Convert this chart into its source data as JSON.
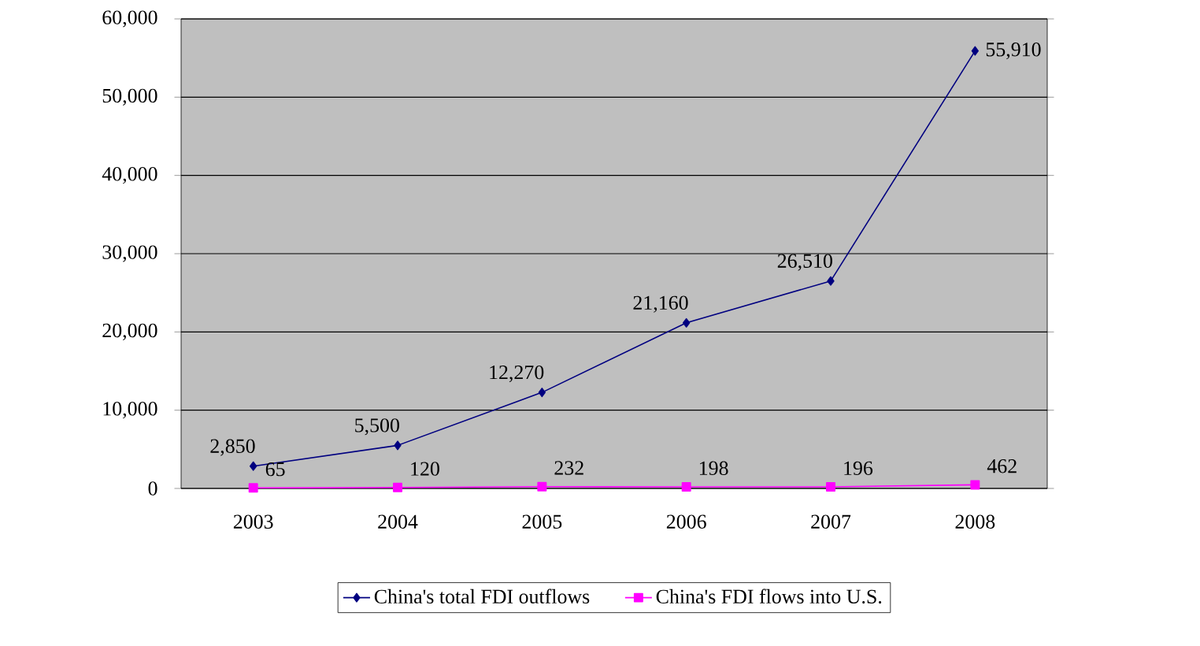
{
  "chart_data": {
    "type": "line",
    "categories": [
      "2003",
      "2004",
      "2005",
      "2006",
      "2007",
      "2008"
    ],
    "series": [
      {
        "name": "China's total FDI outflows",
        "color": "#000080",
        "marker": "diamond",
        "values": [
          2850,
          5500,
          12270,
          21160,
          26510,
          55910
        ],
        "value_labels": [
          "2,850",
          "5,500",
          "12,270",
          "21,160",
          "26,510",
          "55,910"
        ]
      },
      {
        "name": "China's FDI flows into U.S.",
        "color": "#ff00ff",
        "marker": "square",
        "values": [
          65,
          120,
          232,
          198,
          196,
          462
        ],
        "value_labels": [
          "65",
          "120",
          "232",
          "198",
          "196",
          "462"
        ]
      }
    ],
    "ylim": [
      0,
      60000
    ],
    "yticks": [
      {
        "value": 0,
        "label": "0"
      },
      {
        "value": 10000,
        "label": "10,000"
      },
      {
        "value": 20000,
        "label": "20,000"
      },
      {
        "value": 30000,
        "label": "30,000"
      },
      {
        "value": 40000,
        "label": "40,000"
      },
      {
        "value": 50000,
        "label": "50,000"
      },
      {
        "value": 60000,
        "label": "60,000"
      }
    ],
    "grid": "y",
    "legend": "bottom"
  }
}
